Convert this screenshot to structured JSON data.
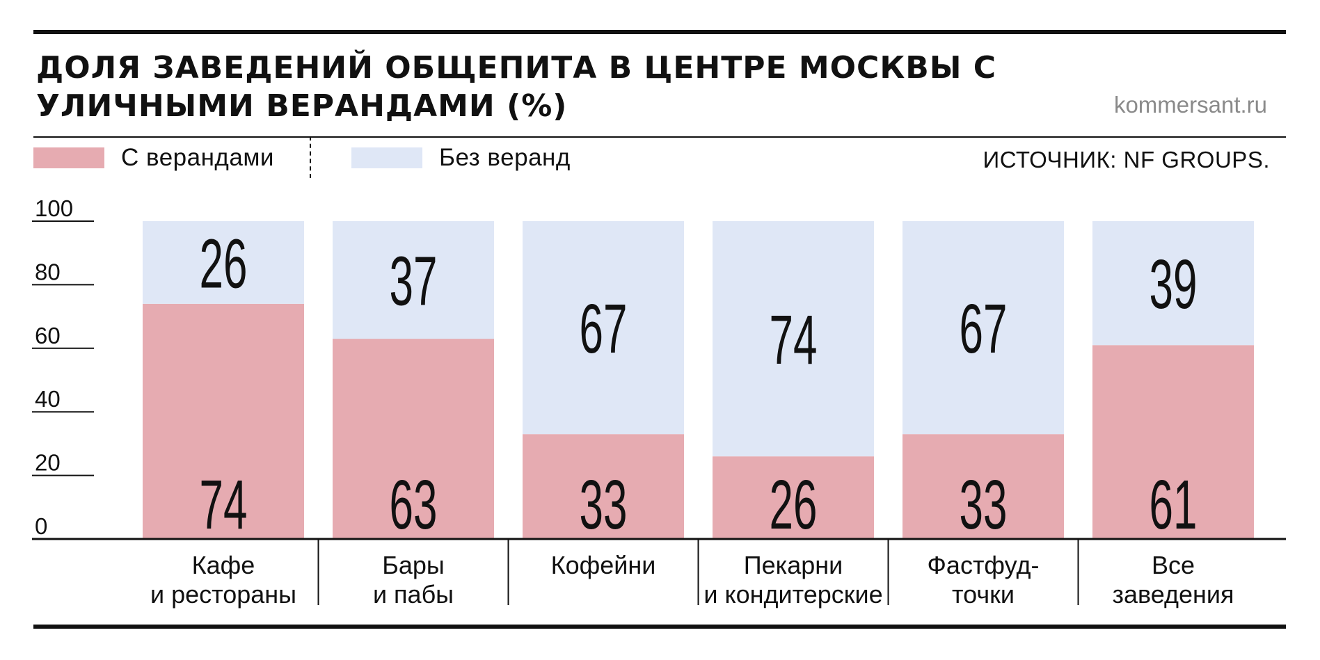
{
  "title": "ДОЛЯ ЗАВЕДЕНИЙ ОБЩЕПИТА В ЦЕНТРЕ МОСКВЫ С УЛИЧНЫМИ ВЕРАНДАМИ (%)",
  "site": "kommersant.ru",
  "source": "ИСТОЧНИК: NF GROUPS.",
  "colors": {
    "with": "#e6abb1",
    "without": "#dfe7f6",
    "ink": "#111111"
  },
  "chart_data": {
    "type": "bar",
    "stacked": true,
    "categories": [
      [
        "Кафе",
        "и рестораны"
      ],
      [
        "Бары",
        "и пабы"
      ],
      [
        "Кофейни"
      ],
      [
        "Пекарни",
        "и кондитерские"
      ],
      [
        "Фастфуд-",
        "точки"
      ],
      [
        "Все",
        "заведения"
      ]
    ],
    "series": [
      {
        "name": "С верандами",
        "values": [
          74,
          63,
          33,
          26,
          33,
          61
        ]
      },
      {
        "name": "Без веранд",
        "values": [
          26,
          37,
          67,
          74,
          67,
          39
        ]
      }
    ],
    "ylim": [
      0,
      100
    ],
    "yticks": [
      0,
      20,
      40,
      60,
      80,
      100
    ],
    "legend": "top-left"
  }
}
